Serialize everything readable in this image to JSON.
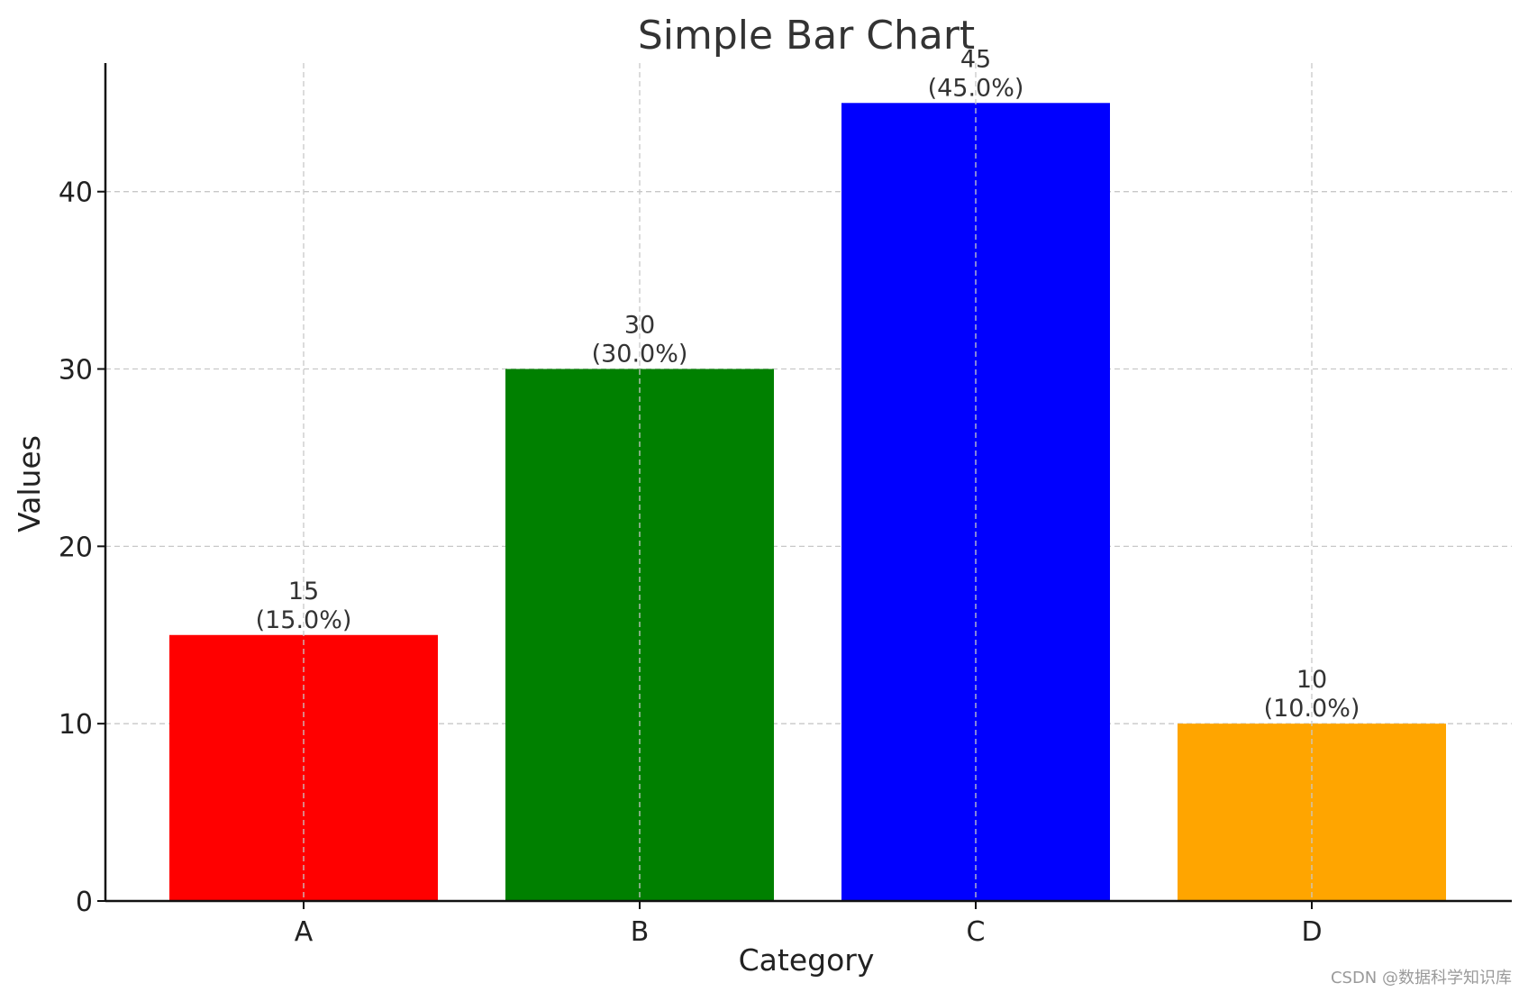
{
  "chart_data": {
    "type": "bar",
    "title": "Simple Bar Chart",
    "xlabel": "Category",
    "ylabel": "Values",
    "categories": [
      "A",
      "B",
      "C",
      "D"
    ],
    "values": [
      15,
      30,
      45,
      10
    ],
    "data_labels": [
      [
        "15",
        "(15.0%)"
      ],
      [
        "30",
        "(30.0%)"
      ],
      [
        "45",
        "(45.0%)"
      ],
      [
        "10",
        "(10.0%)"
      ]
    ],
    "colors": [
      "#ff0000",
      "#008000",
      "#0000ff",
      "#ffa500"
    ],
    "ylim": [
      0,
      47.25
    ],
    "yticks": [
      0,
      10,
      20,
      30,
      40
    ],
    "grid": true,
    "legend": "none"
  },
  "watermark": "CSDN @数据科学知识库"
}
